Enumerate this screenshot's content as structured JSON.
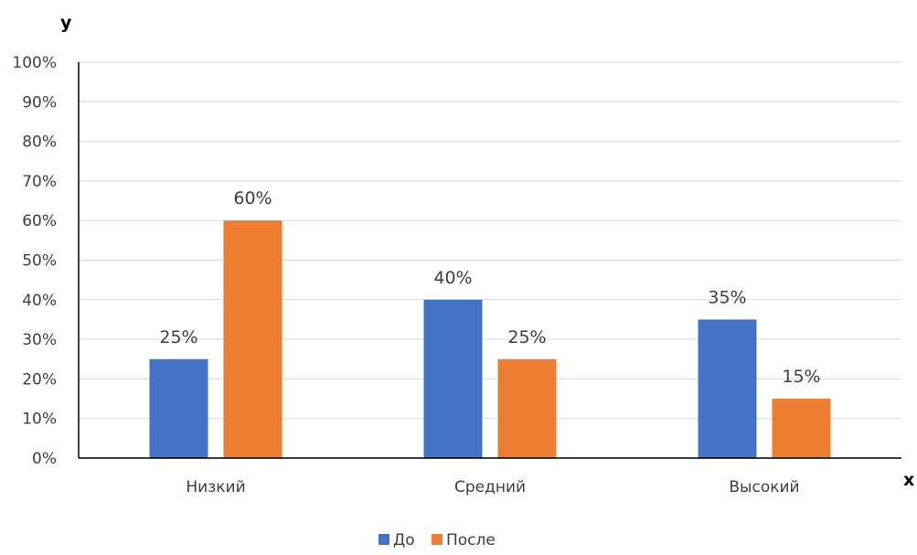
{
  "chart_data": {
    "type": "bar",
    "categories": [
      "Низкий",
      "Средний",
      "Высокий"
    ],
    "series": [
      {
        "name": "До",
        "values": [
          25,
          40,
          35
        ],
        "labels": [
          "25%",
          "40%",
          "35%"
        ],
        "color": "#4472C4"
      },
      {
        "name": "После",
        "values": [
          60,
          25,
          15
        ],
        "labels": [
          "60%",
          "25%",
          "15%"
        ],
        "color": "#ED7D31"
      }
    ],
    "title": "",
    "xlabel": "x",
    "ylabel": "y",
    "ylim": [
      0,
      100
    ],
    "y_ticks": [
      "0%",
      "10%",
      "20%",
      "30%",
      "40%",
      "50%",
      "60%",
      "70%",
      "80%",
      "90%",
      "100%"
    ],
    "grid": true,
    "legend_position": "bottom"
  }
}
